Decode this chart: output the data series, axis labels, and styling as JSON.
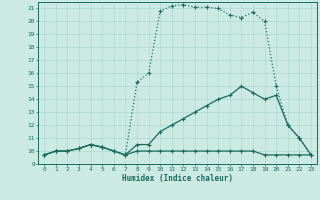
{
  "xlabel": "Humidex (Indice chaleur)",
  "bg_color": "#cceae4",
  "grid_color": "#b0d8d0",
  "line_color": "#1a6b5e",
  "xlim": [
    -0.5,
    23.5
  ],
  "ylim": [
    9,
    21.5
  ],
  "xticks": [
    0,
    1,
    2,
    3,
    4,
    5,
    6,
    7,
    8,
    9,
    10,
    11,
    12,
    13,
    14,
    15,
    16,
    17,
    18,
    19,
    20,
    21,
    22,
    23
  ],
  "yticks": [
    9,
    10,
    11,
    12,
    13,
    14,
    15,
    16,
    17,
    18,
    19,
    20,
    21
  ],
  "line1_x": [
    0,
    1,
    2,
    3,
    4,
    5,
    6,
    7,
    8,
    9,
    10,
    11,
    12,
    13,
    14,
    15,
    16,
    17,
    18,
    19,
    20,
    21,
    22,
    23
  ],
  "line1_y": [
    9.7,
    10.0,
    10.0,
    10.2,
    10.5,
    10.3,
    10.0,
    9.7,
    10.0,
    10.0,
    10.0,
    10.0,
    10.0,
    10.0,
    10.0,
    10.0,
    10.0,
    10.0,
    10.0,
    9.7,
    9.7,
    9.7,
    9.7,
    9.7
  ],
  "line2_x": [
    0,
    1,
    2,
    3,
    4,
    5,
    6,
    7,
    8,
    9,
    10,
    11,
    12,
    13,
    14,
    15,
    16,
    17,
    18,
    19,
    20,
    21,
    22,
    23
  ],
  "line2_y": [
    9.7,
    10.0,
    10.0,
    10.2,
    10.5,
    10.3,
    10.0,
    9.7,
    10.5,
    10.5,
    11.5,
    12.0,
    12.5,
    13.0,
    13.5,
    14.0,
    14.3,
    15.0,
    14.5,
    14.0,
    14.3,
    12.0,
    11.0,
    9.7
  ],
  "line3_x": [
    0,
    1,
    2,
    3,
    4,
    5,
    6,
    7,
    8,
    9,
    10,
    11,
    12,
    13,
    14,
    15,
    16,
    17,
    18,
    19,
    20,
    21,
    22,
    23
  ],
  "line3_y": [
    9.7,
    10.0,
    10.0,
    10.2,
    10.5,
    10.3,
    10.0,
    9.7,
    15.3,
    16.0,
    20.8,
    21.2,
    21.3,
    21.1,
    21.1,
    21.0,
    20.5,
    20.3,
    20.7,
    20.0,
    15.0,
    12.0,
    11.0,
    9.7
  ]
}
